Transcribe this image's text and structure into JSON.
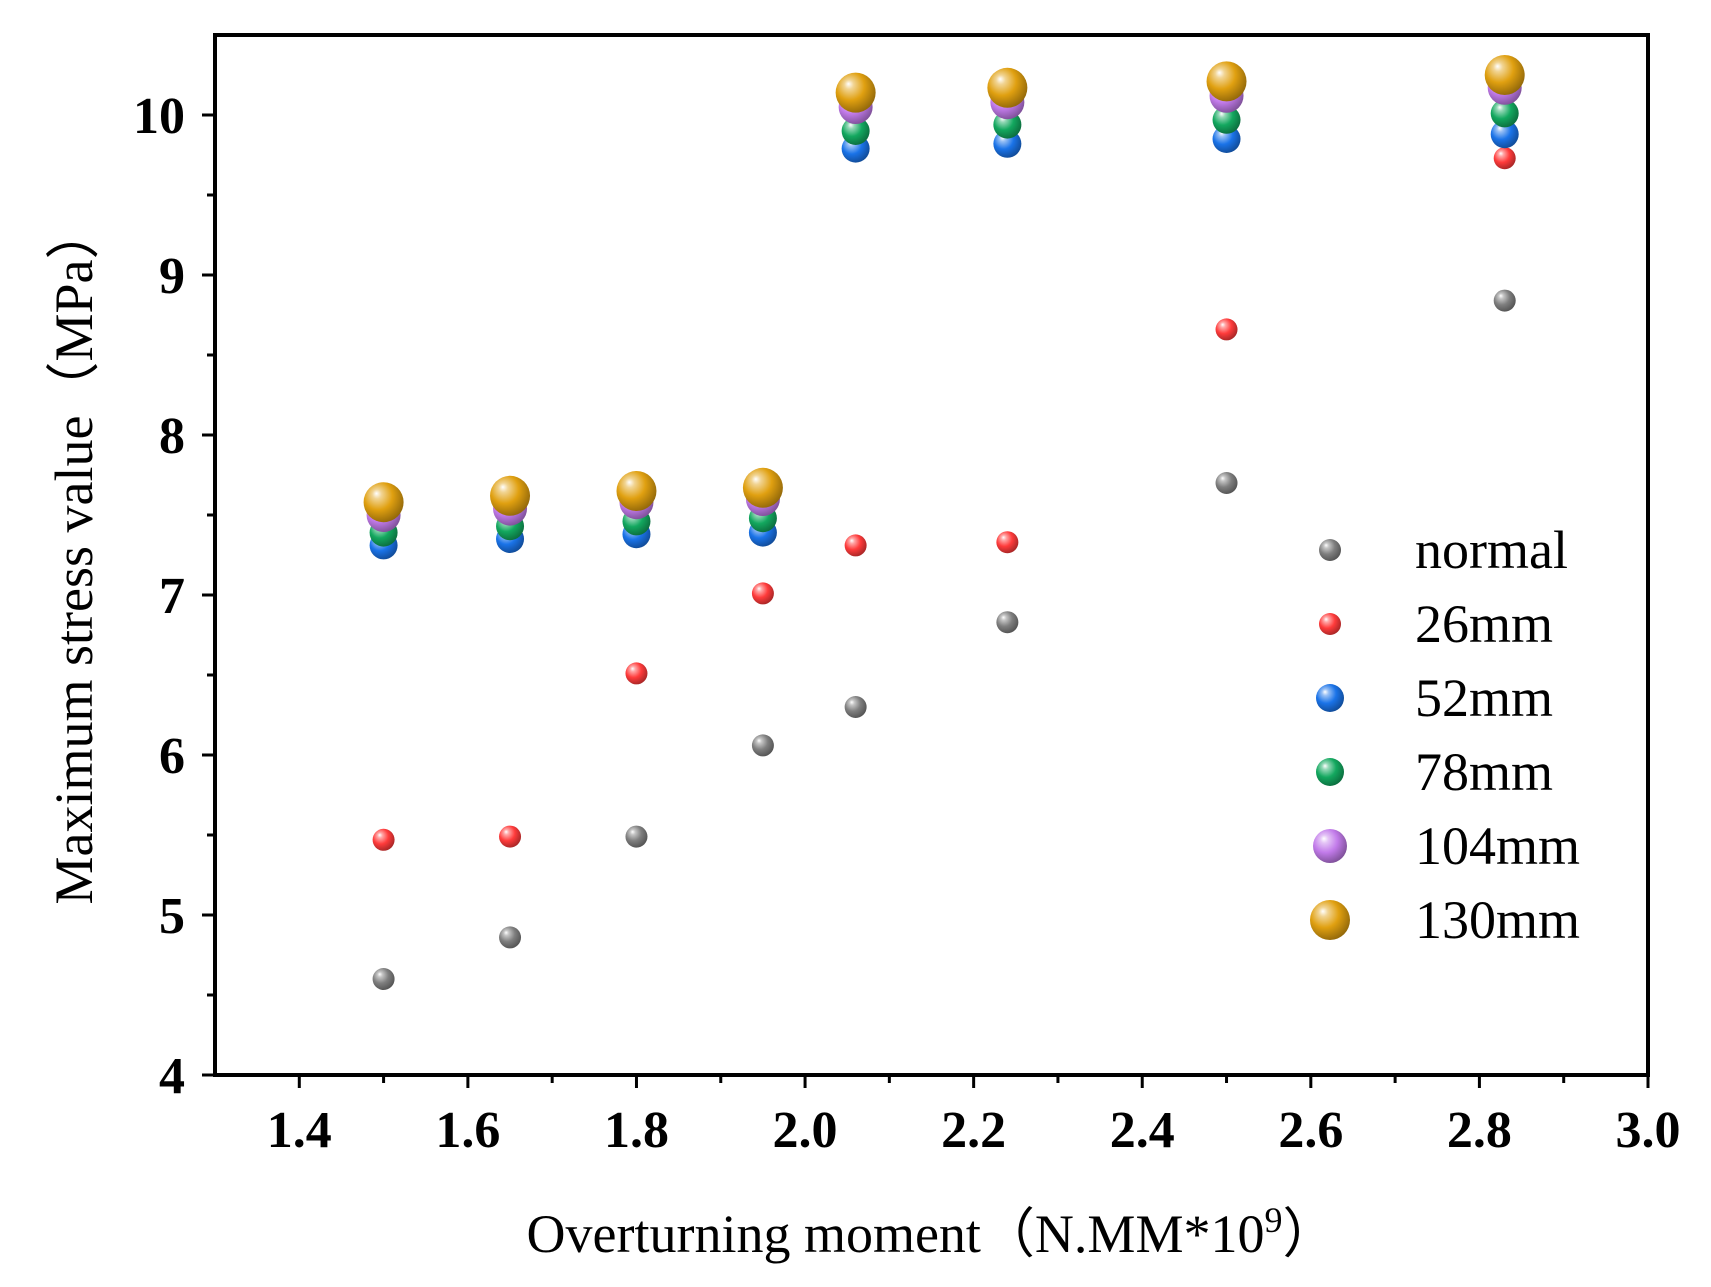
{
  "chart_data": {
    "type": "scatter",
    "xlabel": "Overturning moment（N.MM*10",
    "xlabel_superscript": "9",
    "xlabel_suffix": "）",
    "ylabel": "Maximum stress value（MPa）",
    "xlim": [
      1.3,
      3.0
    ],
    "ylim": [
      4,
      10.5
    ],
    "xticks": [
      "1.4",
      "1.6",
      "1.8",
      "2.0",
      "2.2",
      "2.4",
      "2.6",
      "2.8",
      "3.0"
    ],
    "xtick_values": [
      1.4,
      1.6,
      1.8,
      2.0,
      2.2,
      2.4,
      2.6,
      2.8,
      3.0
    ],
    "yticks": [
      "4",
      "5",
      "6",
      "7",
      "8",
      "9",
      "10"
    ],
    "ytick_values": [
      4,
      5,
      6,
      7,
      8,
      9,
      10
    ],
    "grid": false,
    "legend_position": "right",
    "x": [
      1.5,
      1.65,
      1.8,
      1.95,
      2.06,
      2.24,
      2.5,
      2.83
    ],
    "series": [
      {
        "name": "normal",
        "color": "#7f7f7f",
        "size": "small",
        "values": [
          4.6,
          4.86,
          5.49,
          6.06,
          6.3,
          6.83,
          7.7,
          8.84
        ]
      },
      {
        "name": "26mm",
        "color": "#ff3b3b",
        "size": "small",
        "values": [
          5.47,
          5.49,
          6.51,
          7.01,
          7.31,
          7.33,
          8.66,
          9.73
        ]
      },
      {
        "name": "52mm",
        "color": "#1a73e8",
        "size": "medium",
        "values": [
          7.31,
          7.35,
          7.38,
          7.39,
          9.79,
          9.82,
          9.85,
          9.88
        ]
      },
      {
        "name": "78mm",
        "color": "#13a85f",
        "size": "medium",
        "values": [
          7.39,
          7.43,
          7.46,
          7.48,
          9.9,
          9.94,
          9.97,
          10.01
        ]
      },
      {
        "name": "104mm",
        "color": "#c27bea",
        "size": "large",
        "values": [
          7.5,
          7.54,
          7.58,
          7.6,
          10.05,
          10.08,
          10.12,
          10.17
        ]
      },
      {
        "name": "130mm",
        "color": "#e0a010",
        "size": "xlarge",
        "values": [
          7.58,
          7.62,
          7.65,
          7.67,
          10.14,
          10.17,
          10.21,
          10.25
        ]
      }
    ]
  }
}
